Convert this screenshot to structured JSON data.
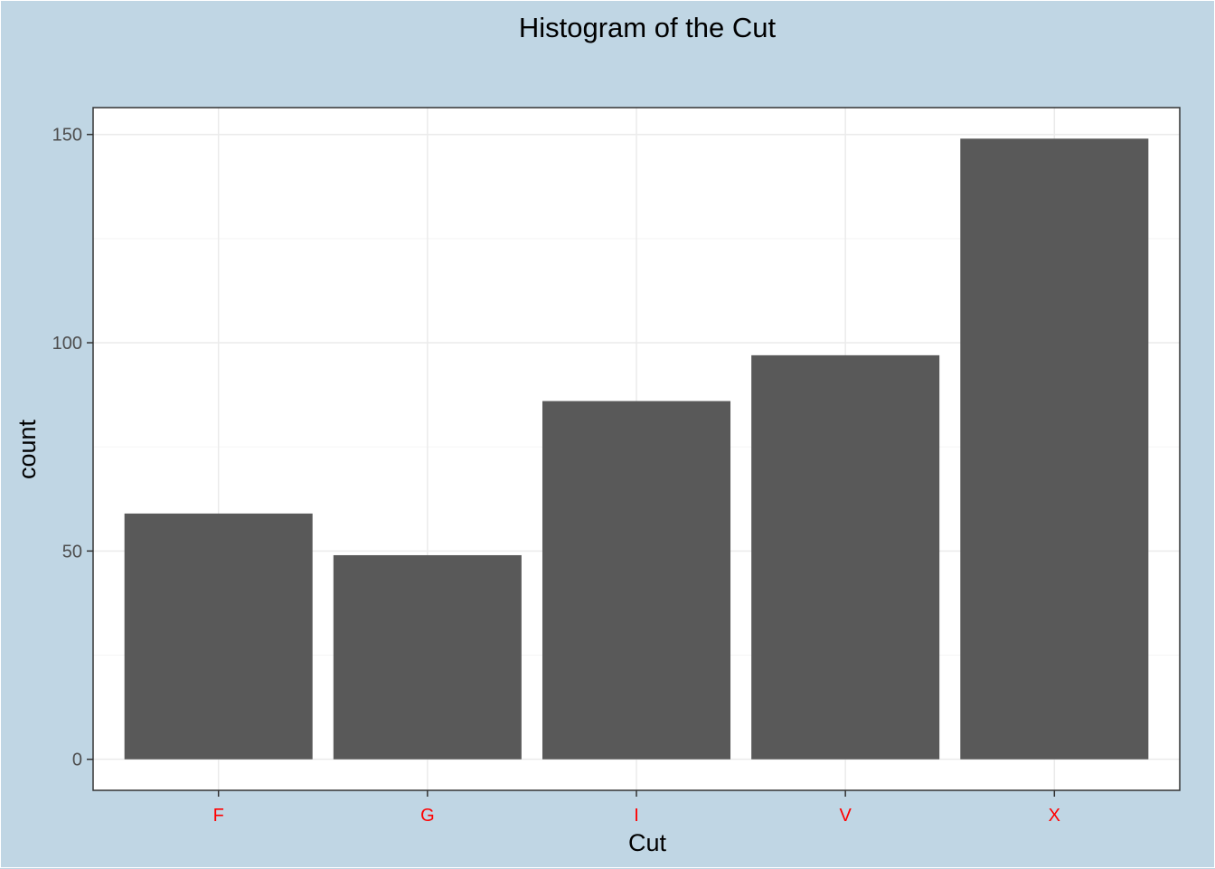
{
  "chart_data": {
    "type": "bar",
    "title": "Histogram of the Cut",
    "xlabel": "Cut",
    "ylabel": "count",
    "categories": [
      "F",
      "G",
      "I",
      "V",
      "X"
    ],
    "values": [
      59,
      49,
      86,
      97,
      149
    ],
    "ylim": [
      -7.45,
      156.45
    ],
    "yticks": [
      "0",
      "50",
      "100",
      "150"
    ],
    "grid": true,
    "legend": "none",
    "colors": {
      "background": "#c0d6e4",
      "panel": "#ffffff",
      "bar": "#595959",
      "grid_major": "#ebebeb",
      "grid_minor": "#f5f5f5",
      "x_tick_labels": "#ff0000",
      "y_tick_labels": "#4d4d4d"
    }
  }
}
